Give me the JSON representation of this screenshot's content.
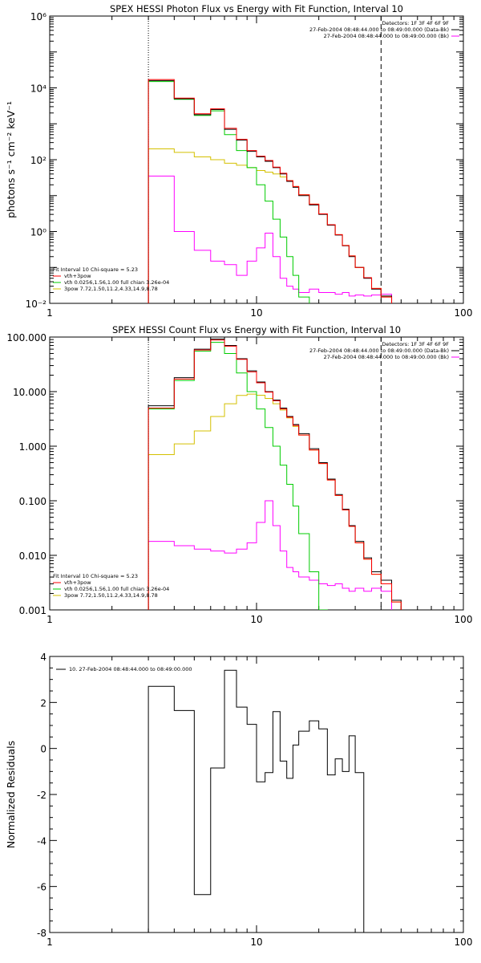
{
  "chart_data": [
    {
      "type": "line",
      "title": "SPEX HESSI Photon Flux vs Energy with Fit Function, Interval 10",
      "xlabel": "",
      "ylabel": "photons s⁻¹ cm⁻² keV⁻¹",
      "xscale": "log",
      "yscale": "log",
      "xlim": [
        1,
        100
      ],
      "ylim": [
        0.01,
        1000000
      ],
      "xticks": [
        1,
        10,
        100
      ],
      "xtick_labels": [
        "1",
        "10",
        "100"
      ],
      "yticks": [
        0.01,
        1,
        100,
        10000,
        1000000
      ],
      "ytick_labels": [
        "10⁻²",
        "10⁰",
        "10²",
        "10⁴",
        "10⁶"
      ],
      "vlines": [
        {
          "x": 3,
          "style": "dotted"
        },
        {
          "x": 40,
          "style": "dashed"
        }
      ],
      "legend_topright": [
        {
          "text": "Detectors: 1F 3F 4F 6F 9F",
          "color": "#000000"
        },
        {
          "text": "27-Feb-2004 08:48:44.000 to 08:49:00.000 (Data-Bk)",
          "color": "#000000"
        },
        {
          "text": "27-Feb-2004 08:48:44.000 to 08:49:00.000 (Bk)",
          "color": "#ff00ff"
        }
      ],
      "legend_bottomleft": [
        {
          "text": "Fit Interval 10   Chi-square = 5.23",
          "color": "#000000"
        },
        {
          "text": "vth+3pow",
          "color": "#ff0000"
        },
        {
          "text": "vth 0.0256,1.56,1.00  full chian 3.26e-04",
          "color": "#00cc00"
        },
        {
          "text": "3pow 7.72,1.50,11.2,4.33,14.9,8.78",
          "color": "#d4c000"
        }
      ],
      "edges": [
        3,
        4,
        5,
        6,
        7,
        8,
        9,
        10,
        11,
        12,
        13,
        14,
        15,
        16,
        18,
        20,
        22,
        24,
        26,
        28,
        30,
        33,
        36,
        40,
        45
      ],
      "series": [
        {
          "name": "Data-Bk",
          "color": "#000000",
          "values": [
            16000,
            5000,
            1800,
            2500,
            700,
            350,
            170,
            120,
            90,
            60,
            40,
            25,
            17,
            10,
            5.5,
            3,
            1.5,
            0.8,
            0.4,
            0.2,
            0.1,
            0.05,
            0.025,
            0.016
          ]
        },
        {
          "name": "vth+3pow",
          "color": "#ff0000",
          "values": [
            17000,
            5200,
            1900,
            2600,
            750,
            370,
            180,
            125,
            95,
            62,
            42,
            26,
            18,
            10.5,
            5.8,
            3.1,
            1.55,
            0.82,
            0.41,
            0.21,
            0.1,
            0.052,
            0.026,
            0.015
          ]
        },
        {
          "name": "vth",
          "color": "#00cc00",
          "values": [
            15000,
            4800,
            1700,
            2300,
            500,
            180,
            60,
            20,
            7,
            2.2,
            0.7,
            0.2,
            0.06,
            0.015
          ]
        },
        {
          "name": "3pow",
          "color": "#d4c000",
          "values": [
            200,
            160,
            120,
            100,
            80,
            70,
            60,
            50,
            45,
            40,
            33,
            26,
            18,
            10.5,
            5.8,
            3.1,
            1.55,
            0.82,
            0.41,
            0.21,
            0.1,
            0.052,
            0.026,
            0.015
          ]
        },
        {
          "name": "Bk",
          "color": "#ff00ff",
          "values": [
            35,
            1,
            0.3,
            0.15,
            0.12,
            0.06,
            0.15,
            0.35,
            0.9,
            0.2,
            0.05,
            0.03,
            0.025,
            0.02,
            0.025,
            0.02,
            0.02,
            0.018,
            0.02,
            0.016,
            0.017,
            0.016,
            0.017,
            0.018
          ]
        }
      ]
    },
    {
      "type": "line",
      "title": "SPEX HESSI Count Flux vs Energy with Fit Function, Interval 10",
      "xlabel": "",
      "ylabel": "",
      "xscale": "log",
      "yscale": "log",
      "xlim": [
        1,
        100
      ],
      "ylim": [
        0.001,
        100
      ],
      "xticks": [
        1,
        10,
        100
      ],
      "xtick_labels": [
        "1",
        "10",
        "100"
      ],
      "yticks": [
        0.001,
        0.01,
        0.1,
        1,
        10,
        100
      ],
      "ytick_labels": [
        "0.001",
        "0.010",
        "0.100",
        "1.000",
        "10.000",
        "100.000"
      ],
      "vlines": [
        {
          "x": 3,
          "style": "dotted"
        },
        {
          "x": 40,
          "style": "dashed"
        }
      ],
      "legend_topright": [
        {
          "text": "Detectors: 1F 3F 4F 6F 9F",
          "color": "#000000"
        },
        {
          "text": "27-Feb-2004 08:48:44.000 to 08:49:00.000 (Data-Bk)",
          "color": "#000000"
        },
        {
          "text": "27-Feb-2004 08:48:44.000 to 08:49:00.000 (Bk)",
          "color": "#ff00ff"
        }
      ],
      "legend_bottomleft": [
        {
          "text": "Fit Interval 10   Chi-square = 5.23",
          "color": "#000000"
        },
        {
          "text": "vth+3pow",
          "color": "#ff0000"
        },
        {
          "text": "vth 0.0256,1.56,1.00  full chian 3.26e-04",
          "color": "#00cc00"
        },
        {
          "text": "3pow 7.72,1.50,11.2,4.33,14.9,8.78",
          "color": "#d4c000"
        }
      ],
      "edges": [
        3,
        4,
        5,
        6,
        7,
        8,
        9,
        10,
        11,
        12,
        13,
        14,
        15,
        16,
        18,
        20,
        22,
        24,
        26,
        28,
        30,
        33,
        36,
        40,
        45,
        50
      ],
      "series": [
        {
          "name": "Data-Bk",
          "color": "#000000",
          "values": [
            5.5,
            18,
            60,
            92,
            70,
            40,
            24,
            15,
            10,
            7,
            5,
            3.5,
            2.5,
            1.7,
            0.9,
            0.5,
            0.25,
            0.13,
            0.07,
            0.035,
            0.018,
            0.009,
            0.005,
            0.0035,
            0.0015
          ]
        },
        {
          "name": "vth+3pow",
          "color": "#ff0000",
          "values": [
            5.0,
            17,
            58,
            88,
            68,
            39,
            23,
            14.5,
            9.8,
            6.8,
            4.8,
            3.4,
            2.4,
            1.6,
            0.85,
            0.48,
            0.24,
            0.125,
            0.068,
            0.034,
            0.017,
            0.0085,
            0.0045,
            0.003,
            0.0014
          ]
        },
        {
          "name": "vth",
          "color": "#00cc00",
          "values": [
            4.8,
            16,
            55,
            80,
            50,
            22,
            10,
            4.8,
            2.2,
            1.0,
            0.45,
            0.2,
            0.08,
            0.025,
            0.005,
            0.001
          ]
        },
        {
          "name": "3pow",
          "color": "#d4c000",
          "values": [
            0.7,
            1.1,
            1.9,
            3.5,
            6,
            8.5,
            9,
            8.6,
            7.5,
            6,
            4.6,
            3.3,
            2.3,
            1.6,
            0.85,
            0.48,
            0.24,
            0.125,
            0.068,
            0.034,
            0.017,
            0.0085,
            0.0045,
            0.003,
            0.0014
          ]
        },
        {
          "name": "Bk",
          "color": "#ff00ff",
          "values": [
            0.018,
            0.015,
            0.013,
            0.012,
            0.011,
            0.013,
            0.017,
            0.04,
            0.1,
            0.035,
            0.012,
            0.006,
            0.005,
            0.004,
            0.0035,
            0.003,
            0.0028,
            0.003,
            0.0025,
            0.0022,
            0.0025,
            0.0022,
            0.0025,
            0.0022
          ]
        }
      ]
    },
    {
      "type": "line",
      "title": "",
      "xlabel": "",
      "ylabel": "Normalized Residuals",
      "xscale": "log",
      "yscale": "linear",
      "xlim": [
        1,
        100
      ],
      "ylim": [
        -8,
        4
      ],
      "xticks": [
        1,
        10,
        100
      ],
      "xtick_labels": [
        "1",
        "10",
        "100"
      ],
      "yticks": [
        -8,
        -6,
        -4,
        -2,
        0,
        2,
        4
      ],
      "ytick_labels": [
        "-8",
        "-6",
        "-4",
        "-2",
        "0",
        "2",
        "4"
      ],
      "legend_topleft": [
        {
          "text": "10. 27-Feb-2004 08:48:44.000 to 08:49:00.000",
          "color": "#000000"
        }
      ],
      "edges": [
        3,
        4,
        5,
        6,
        7,
        8,
        9,
        10,
        11,
        12,
        13,
        14,
        15,
        16,
        18,
        20,
        22,
        24,
        26,
        28,
        30,
        33,
        36,
        40
      ],
      "series": [
        {
          "name": "10. 27-Feb-2004 08:48:44.000 to 08:49:00.000",
          "color": "#000000",
          "values": [
            2.7,
            1.65,
            -6.35,
            -0.85,
            3.4,
            1.8,
            1.05,
            -1.45,
            -1.05,
            1.6,
            -0.55,
            -1.3,
            0.15,
            0.75,
            1.2,
            0.85,
            -1.15,
            -0.45,
            -1.0,
            0.55,
            -1.05
          ]
        }
      ]
    }
  ]
}
